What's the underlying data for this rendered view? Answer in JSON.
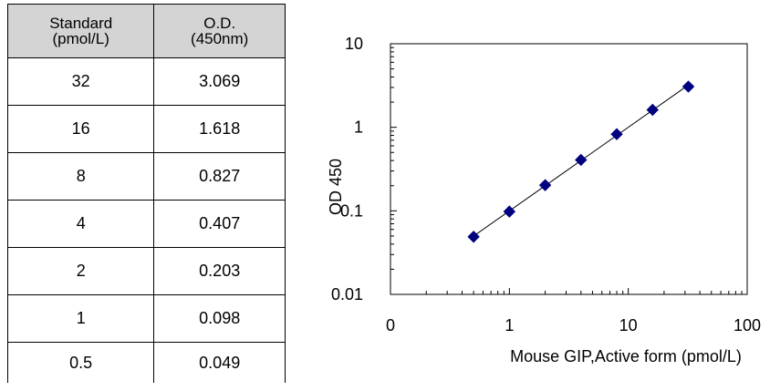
{
  "table": {
    "headers": [
      {
        "line1": "Standard",
        "line2": "(pmol/L)"
      },
      {
        "line1": "O.D.",
        "line2": "(450nm)"
      }
    ],
    "rows": [
      {
        "standard": "32",
        "od": "3.069"
      },
      {
        "standard": "16",
        "od": "1.618"
      },
      {
        "standard": "8",
        "od": "0.827"
      },
      {
        "standard": "4",
        "od": "0.407"
      },
      {
        "standard": "2",
        "od": "0.203"
      },
      {
        "standard": "1",
        "od": "0.098"
      },
      {
        "standard": "0.5",
        "od": "0.049"
      }
    ]
  },
  "chart_data": {
    "type": "scatter",
    "x_scale": "log",
    "y_scale": "log",
    "xlim": [
      0.1,
      100
    ],
    "ylim": [
      0.01,
      10
    ],
    "x_tick_labels": [
      "0",
      "1",
      "10",
      "100"
    ],
    "y_tick_labels": [
      "10",
      "1",
      "0.1",
      "0.01"
    ],
    "xlabel": "Mouse GIP,Active form (pmol/L)",
    "ylabel": "OD 450",
    "grid": false,
    "trendline": true,
    "marker_color": "#000080",
    "series": [
      {
        "x": [
          0.5,
          1,
          2,
          4,
          8,
          16,
          32
        ],
        "y": [
          0.049,
          0.098,
          0.203,
          0.407,
          0.827,
          1.618,
          3.069
        ]
      }
    ]
  }
}
